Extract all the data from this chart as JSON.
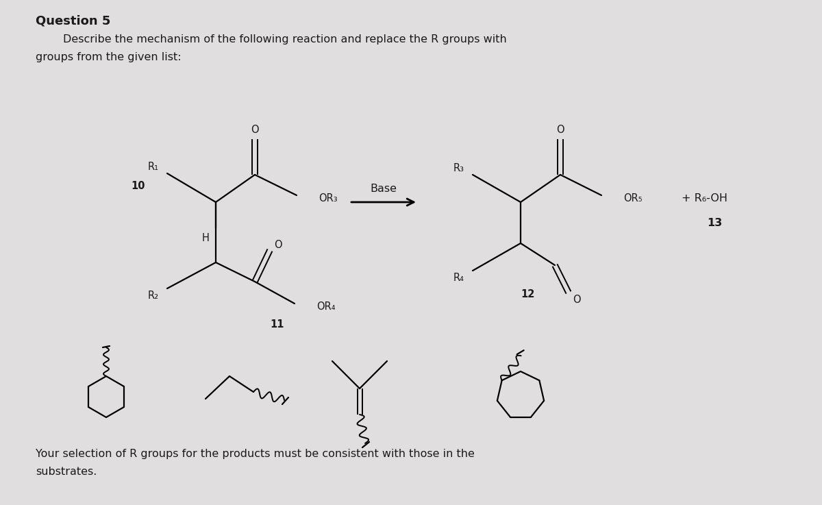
{
  "title": "Question 5",
  "subtitle1": "Describe the mechanism of the following reaction and replace the R groups with",
  "subtitle2": "groups from the given list:",
  "footer1": "Your selection of R groups for the products must be consistent with those in the",
  "footer2": "substrates.",
  "bg_color": "#e0dede",
  "text_color": "#1a1a1a",
  "base_text": "Base",
  "r1": "R₁",
  "r2": "R₂",
  "r3": "R₃",
  "r4": "R₄",
  "r5": "R₅",
  "r6": "R₆",
  "lbl10": "10",
  "lbl11": "11",
  "lbl12": "12",
  "lbl13": "13",
  "plus_roh": "+ R₆-OH"
}
